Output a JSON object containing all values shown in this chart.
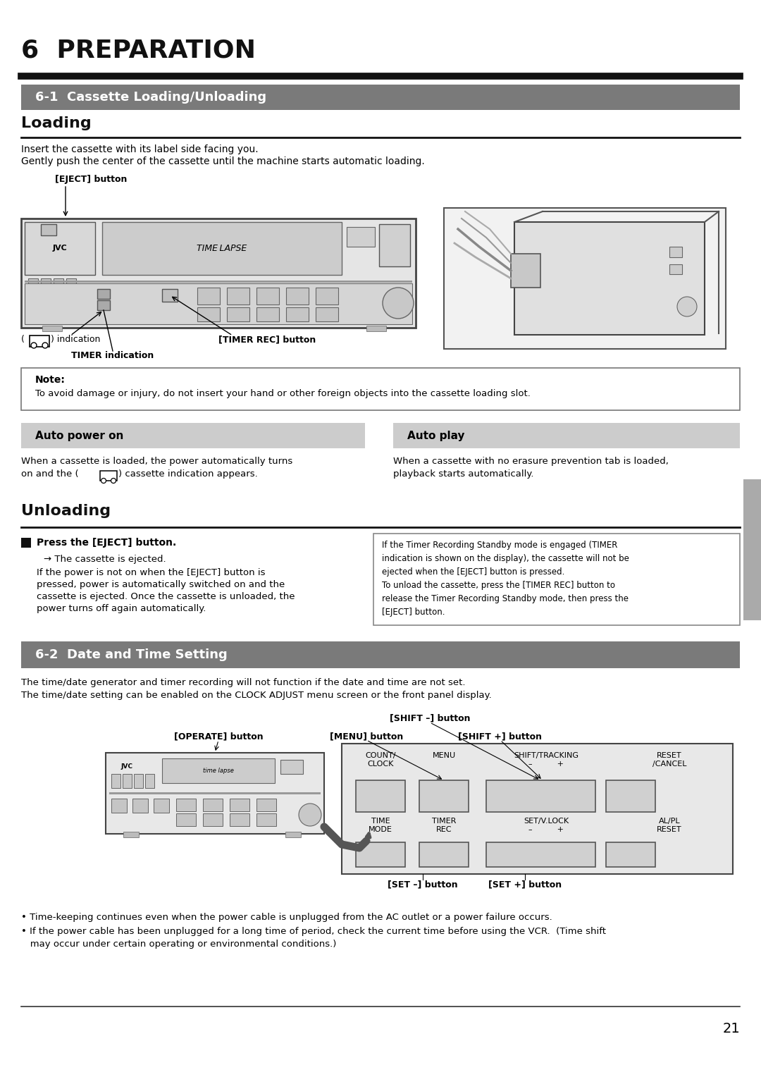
{
  "page_title": "6  PREPARATION",
  "section1_title": "6-1  Cassette Loading/Unloading",
  "subsection1_title": "Loading",
  "loading_text1": "Insert the cassette with its label side facing you.",
  "loading_text2": "Gently push the center of the cassette until the machine starts automatic loading.",
  "eject_label": "[EJECT] button",
  "timer_rec_label": "[TIMER REC] button",
  "timer_ind_label": "TIMER indication",
  "note_title": "Note:",
  "note_text": "To avoid damage or injury, do not insert your hand or other foreign objects into the cassette loading slot.",
  "auto_power_title": "Auto power on",
  "auto_play_title": "Auto play",
  "auto_power_line1": "When a cassette is loaded, the power automatically turns",
  "auto_power_line2": "on and the (      ) cassette indication appears.",
  "auto_play_line1": "When a cassette with no erasure prevention tab is loaded,",
  "auto_play_line2": "playback starts automatically.",
  "subsection2_title": "Unloading",
  "unload_step": "Press the [EJECT] button.",
  "unload_sub1": "→ The cassette is ejected.",
  "unload_l2": "If the power is not on when the [EJECT] button is",
  "unload_l3": "pressed, power is automatically switched on and the",
  "unload_l4": "cassette is ejected. Once the cassette is unloaded, the",
  "unload_l5": "power turns off again automatically.",
  "ubox_l1": "If the Timer Recording Standby mode is engaged (TIMER",
  "ubox_l2": "indication is shown on the display), the cassette will not be",
  "ubox_l3": "ejected when the [EJECT] button is pressed.",
  "ubox_l4": "To unload the cassette, press the [TIMER REC] button to",
  "ubox_l5": "release the Timer Recording Standby mode, then press the",
  "ubox_l6": "[EJECT] button.",
  "section2_title": "6-2  Date and Time Setting",
  "date_text1": "The time/date generator and timer recording will not function if the date and time are not set.",
  "date_text2": "The time/date setting can be enabled on the CLOCK ADJUST menu screen or the front panel display.",
  "operate_label": "[OPERATE] button",
  "menu_label": "[MENU] button",
  "shift_minus_label": "[SHIFT –] button",
  "shift_plus_label": "[SHIFT +] button",
  "set_minus_label": "[SET –] button",
  "set_plus_label": "[SET +] button",
  "bullet1": "• Time-keeping continues even when the power cable is unplugged from the AC outlet or a power failure occurs.",
  "bullet2a": "• If the power cable has been unplugged for a long time of period, check the current time before using the VCR.  (Time shift",
  "bullet2b": "   may occur under certain operating or environmental conditions.)",
  "page_num": "21",
  "section_bg": "#7a7a7a",
  "subsection_bg": "#cccccc",
  "tab_bg": "#aaaaaa"
}
